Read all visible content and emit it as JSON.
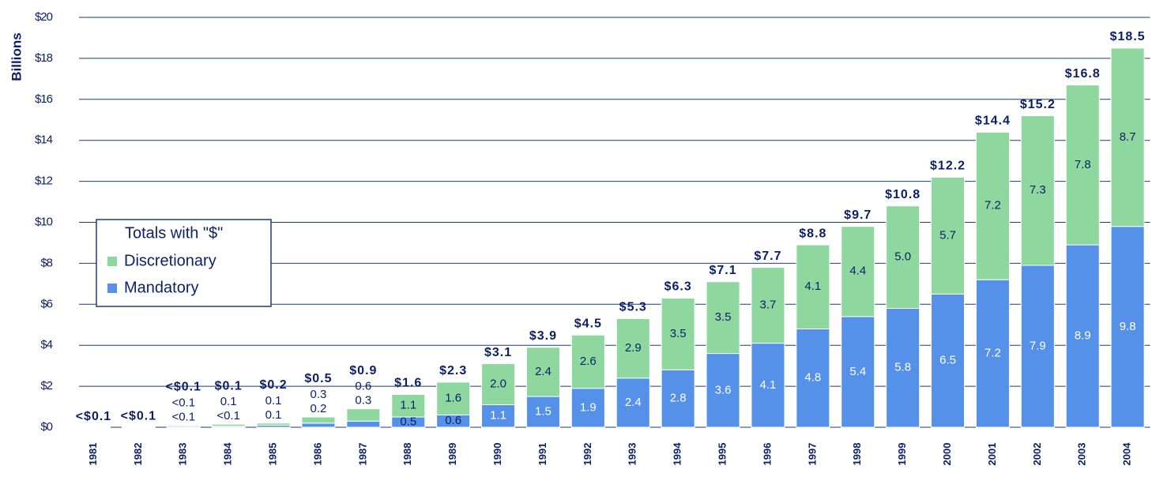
{
  "chart_data": {
    "type": "stacked_bar",
    "y_label": "Billions",
    "categories": [
      "1981",
      "1982",
      "1983",
      "1984",
      "1985",
      "1986",
      "1987",
      "1988",
      "1989",
      "1990",
      "1991",
      "1992",
      "1993",
      "1994",
      "1995",
      "1996",
      "1997",
      "1998",
      "1999",
      "2000",
      "2001",
      "2002",
      "2003",
      "2004"
    ],
    "series": [
      {
        "name": "Mandatory",
        "color": "#5591e8",
        "values": [
          0.02,
          0.03,
          0.05,
          0.05,
          0.1,
          0.2,
          0.3,
          0.5,
          0.6,
          1.1,
          1.5,
          1.9,
          2.4,
          2.8,
          3.6,
          4.1,
          4.8,
          5.4,
          5.8,
          6.5,
          7.2,
          7.9,
          8.9,
          9.8
        ],
        "value_labels": [
          null,
          null,
          "<0.1",
          "<0.1",
          "0.1",
          "0.2",
          "0.3",
          "0.5",
          "0.6",
          "1.1",
          "1.5",
          "1.9",
          "2.4",
          "2.8",
          "3.6",
          "4.1",
          "4.8",
          "5.4",
          "5.8",
          "6.5",
          "7.2",
          "7.9",
          "8.9",
          "9.8"
        ]
      },
      {
        "name": "Discretionary",
        "color": "#8ed8a0",
        "values": [
          0.03,
          0.04,
          0.05,
          0.1,
          0.1,
          0.3,
          0.6,
          1.1,
          1.6,
          2.0,
          2.4,
          2.6,
          2.9,
          3.5,
          3.5,
          3.7,
          4.1,
          4.4,
          5.0,
          5.7,
          7.2,
          7.3,
          7.8,
          8.7
        ],
        "value_labels": [
          null,
          null,
          "<0.1",
          "0.1",
          "0.1",
          "0.3",
          "0.6",
          "1.1",
          "1.6",
          "2.0",
          "2.4",
          "2.6",
          "2.9",
          "3.5",
          "3.5",
          "3.7",
          "4.1",
          "4.4",
          "5.0",
          "5.7",
          "7.2",
          "7.3",
          "7.8",
          "8.7"
        ]
      }
    ],
    "total_labels": [
      "<$0.1",
      "<$0.1",
      "<$0.1",
      "$0.1",
      "$0.2",
      "$0.5",
      "$0.9",
      "$1.6",
      "$2.3",
      "$3.1",
      "$3.9",
      "$4.5",
      "$5.3",
      "$6.3",
      "$7.1",
      "$7.7",
      "$8.8",
      "$9.7",
      "$10.8",
      "$12.2",
      "$14.4",
      "$15.2",
      "$16.8",
      "$18.5"
    ],
    "legend_title": "Totals with \"$\"",
    "legend_position": "left",
    "ylim": [
      0,
      20
    ],
    "yticks": [
      {
        "value": 0,
        "label": "$0"
      },
      {
        "value": 2,
        "label": "$2"
      },
      {
        "value": 4,
        "label": "$4"
      },
      {
        "value": 6,
        "label": "$6"
      },
      {
        "value": 8,
        "label": "$8"
      },
      {
        "value": 10,
        "label": "$10"
      },
      {
        "value": 12,
        "label": "$12"
      },
      {
        "value": 14,
        "label": "$14"
      },
      {
        "value": 16,
        "label": "$16"
      },
      {
        "value": 18,
        "label": "$18"
      },
      {
        "value": 20,
        "label": "$20"
      }
    ],
    "grid": true
  }
}
